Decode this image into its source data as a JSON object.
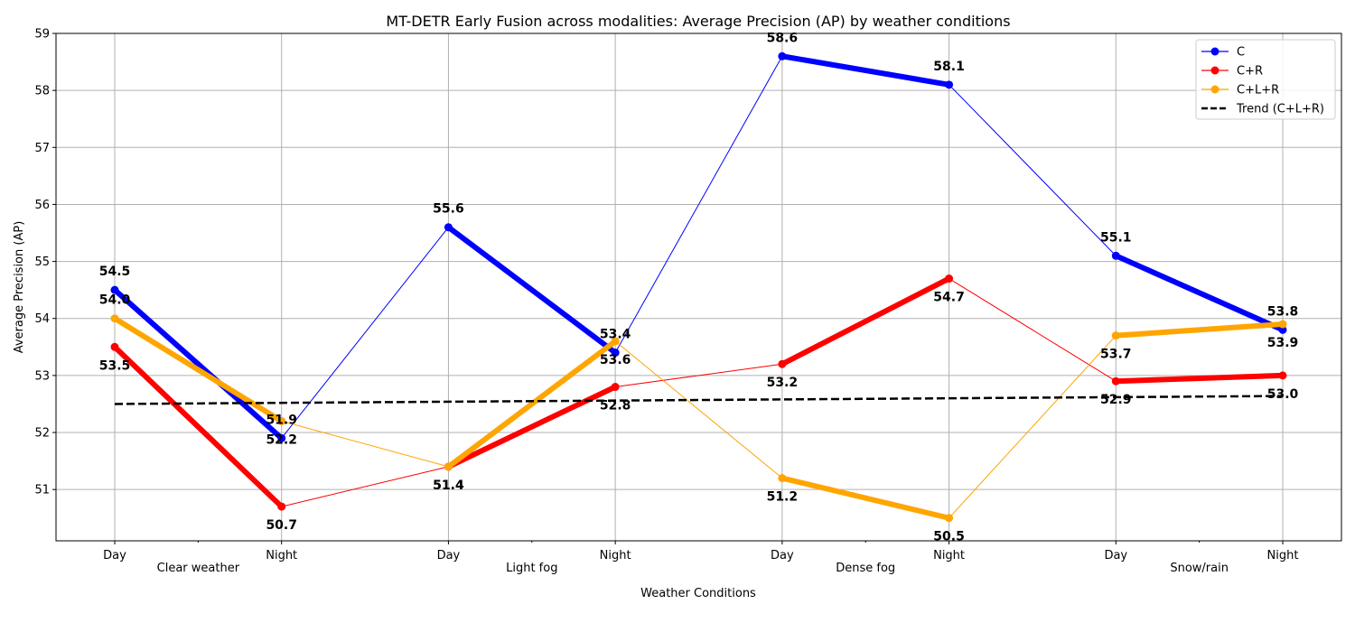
{
  "chart_data": {
    "type": "line",
    "title": "MT-DETR Early Fusion across modalities: Average Precision (AP) by weather conditions",
    "xlabel": "Weather Conditions",
    "ylabel": "Average Precision (AP)",
    "ylim": [
      50.1,
      59
    ],
    "yticks": [
      51,
      52,
      53,
      54,
      55,
      56,
      57,
      58,
      59
    ],
    "grid": true,
    "legend_position": "top-right",
    "categories": [
      "Day",
      "Night",
      "Day",
      "Night",
      "Day",
      "Night",
      "Day",
      "Night"
    ],
    "groups": [
      "Clear weather",
      "Light fog",
      "Dense fog",
      "Snow/rain"
    ],
    "series": [
      {
        "name": "C",
        "color": "#0000ff",
        "values": [
          54.5,
          51.9,
          55.6,
          53.4,
          58.6,
          58.1,
          55.1,
          53.8
        ],
        "label_pos": [
          "above",
          "above",
          "above",
          "above",
          "above",
          "above",
          "above",
          "above"
        ]
      },
      {
        "name": "C+R",
        "color": "#ff0000",
        "values": [
          53.5,
          50.7,
          51.4,
          52.8,
          53.2,
          54.7,
          52.9,
          53.0
        ],
        "label_pos": [
          "below",
          "below",
          "below",
          "below",
          "below",
          "below",
          "below",
          "below"
        ]
      },
      {
        "name": "C+L+R",
        "color": "#ffa500",
        "values": [
          54.0,
          52.2,
          51.4,
          53.6,
          51.2,
          50.5,
          53.7,
          53.9
        ],
        "label_pos": [
          "above",
          "below",
          "below",
          "below",
          "below",
          "below",
          "below",
          "below"
        ]
      }
    ],
    "trend": {
      "name": "Trend (C+L+R)",
      "color": "#000000",
      "values": [
        52.5,
        52.64
      ]
    }
  }
}
